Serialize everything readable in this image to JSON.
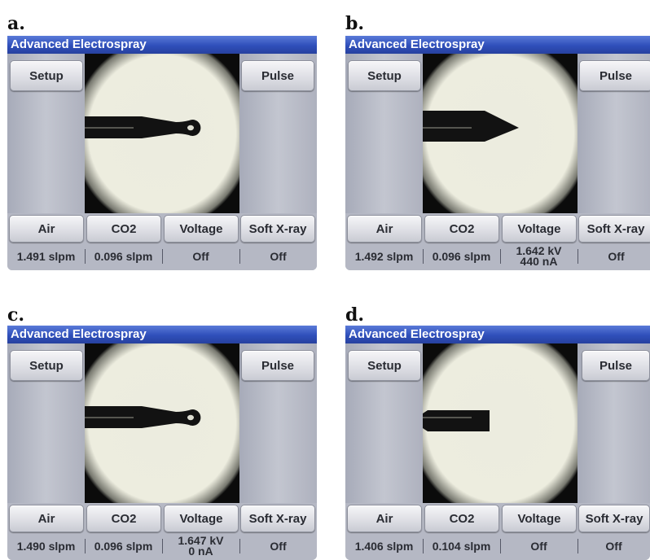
{
  "panels": [
    {
      "letter": "a.",
      "title": "Advanced Electrospray",
      "buttons": {
        "setup": "Setup",
        "pulse": "Pulse",
        "air": "Air",
        "co2": "CO2",
        "voltage": "Voltage",
        "xray": "Soft X-ray"
      },
      "readouts": {
        "air": "1.491 slpm",
        "co2": "0.096 slpm",
        "voltage_line1": "Off",
        "voltage_line2": "",
        "xray": "Off"
      },
      "needle_tip": "ball"
    },
    {
      "letter": "b.",
      "title": "Advanced Electrospray",
      "buttons": {
        "setup": "Setup",
        "pulse": "Pulse",
        "air": "Air",
        "co2": "CO2",
        "voltage": "Voltage",
        "xray": "Soft X-ray"
      },
      "readouts": {
        "air": "1.492 slpm",
        "co2": "0.096 slpm",
        "voltage_line1": "1.642 kV",
        "voltage_line2": "440 nA",
        "xray": "Off"
      },
      "needle_tip": "cone"
    },
    {
      "letter": "c.",
      "title": "Advanced Electrospray",
      "buttons": {
        "setup": "Setup",
        "pulse": "Pulse",
        "air": "Air",
        "co2": "CO2",
        "voltage": "Voltage",
        "xray": "Soft X-ray"
      },
      "readouts": {
        "air": "1.490 slpm",
        "co2": "0.096 slpm",
        "voltage_line1": "1.647 kV",
        "voltage_line2": "0 nA",
        "xray": "Off"
      },
      "needle_tip": "ball"
    },
    {
      "letter": "d.",
      "title": "Advanced Electrospray",
      "buttons": {
        "setup": "Setup",
        "pulse": "Pulse",
        "air": "Air",
        "co2": "CO2",
        "voltage": "Voltage",
        "xray": "Soft X-ray"
      },
      "readouts": {
        "air": "1.406 slpm",
        "co2": "0.104 slpm",
        "voltage_line1": "Off",
        "voltage_line2": "",
        "xray": "Off"
      },
      "needle_tip": "flat"
    }
  ],
  "colors": {
    "titlebar": "#2f4fba",
    "panel_bg": "#b7bac6",
    "button_text": "#2a2c33",
    "viewer_light": "#ededdf"
  }
}
